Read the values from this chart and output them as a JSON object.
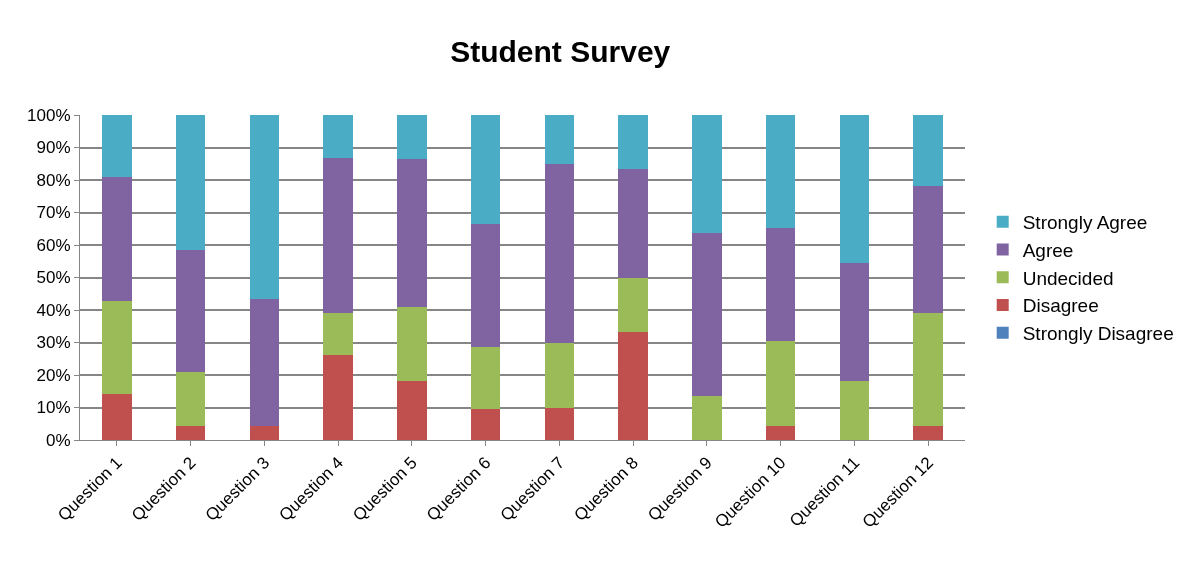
{
  "chart_data": {
    "type": "bar",
    "title": "Student Survey",
    "stacked": true,
    "categories": [
      "Question 1",
      "Question 2",
      "Question 3",
      "Question 4",
      "Question 5",
      "Question 6",
      "Question 7",
      "Question 8",
      "Question 9",
      "Question 10",
      "Question 11",
      "Question 12"
    ],
    "series": [
      {
        "name": "Strongly Disagree",
        "color": "#4f81bd",
        "values": [
          0,
          0,
          0,
          0,
          0,
          0,
          0,
          0,
          0,
          0,
          0,
          0
        ]
      },
      {
        "name": "Disagree",
        "color": "#c0504d",
        "values": [
          14.3,
          4.2,
          4.3,
          26.1,
          18.2,
          9.5,
          10,
          33.3,
          0,
          4.3,
          0,
          4.3
        ]
      },
      {
        "name": "Undecided",
        "color": "#9bbb59",
        "values": [
          28.6,
          16.7,
          0,
          13.0,
          22.7,
          19.0,
          20,
          16.7,
          13.6,
          26.1,
          18.2,
          34.8
        ]
      },
      {
        "name": "Agree",
        "color": "#8064a2",
        "values": [
          38.1,
          37.5,
          39.1,
          47.8,
          45.5,
          38.1,
          55,
          33.3,
          50.0,
          34.8,
          36.4,
          39.1
        ]
      },
      {
        "name": "Strongly Agree",
        "color": "#4bacc6",
        "values": [
          19.0,
          41.6,
          56.6,
          13.1,
          13.6,
          33.3,
          15,
          16.7,
          36.4,
          34.8,
          45.4,
          21.7
        ]
      }
    ],
    "ylim": [
      0,
      100
    ],
    "yticks": [
      {
        "value": 0,
        "label": "0%"
      },
      {
        "value": 10,
        "label": "10%"
      },
      {
        "value": 20,
        "label": "20%"
      },
      {
        "value": 30,
        "label": "30%"
      },
      {
        "value": 40,
        "label": "40%"
      },
      {
        "value": 50,
        "label": "50%"
      },
      {
        "value": 60,
        "label": "60%"
      },
      {
        "value": 70,
        "label": "70%"
      },
      {
        "value": 80,
        "label": "80%"
      },
      {
        "value": 90,
        "label": "90%"
      },
      {
        "value": 100,
        "label": "100%"
      }
    ],
    "grid": "y",
    "legend": "right"
  }
}
